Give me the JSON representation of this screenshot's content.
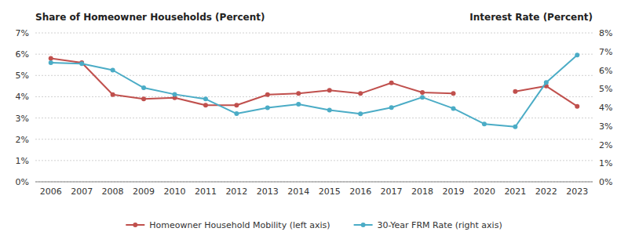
{
  "chart_data": {
    "type": "line",
    "y_label": "Share of Homeowner Households (Percent)",
    "y2_label": "Interest Rate (Percent)",
    "x": [
      2006,
      2007,
      2008,
      2009,
      2010,
      2011,
      2012,
      2013,
      2014,
      2015,
      2016,
      2017,
      2018,
      2019,
      2020,
      2021,
      2022,
      2023
    ],
    "xlim": [
      2005.5,
      2023.5
    ],
    "xticks": [
      2006,
      2007,
      2008,
      2009,
      2010,
      2011,
      2012,
      2013,
      2014,
      2015,
      2016,
      2017,
      2018,
      2019,
      2020,
      2021,
      2022,
      2023
    ],
    "ylim": [
      0,
      7
    ],
    "yticks": [
      {
        "value": 0,
        "label": "0%"
      },
      {
        "value": 1,
        "label": "1%"
      },
      {
        "value": 2,
        "label": "2%"
      },
      {
        "value": 3,
        "label": "3%"
      },
      {
        "value": 4,
        "label": "4%"
      },
      {
        "value": 5,
        "label": "5%"
      },
      {
        "value": 6,
        "label": "6%"
      },
      {
        "value": 7,
        "label": "7%"
      }
    ],
    "y2lim": [
      0,
      8
    ],
    "y2ticks": [
      {
        "value": 0,
        "label": "0%"
      },
      {
        "value": 1,
        "label": "1%"
      },
      {
        "value": 2,
        "label": "2%"
      },
      {
        "value": 3,
        "label": "3%"
      },
      {
        "value": 4,
        "label": "4%"
      },
      {
        "value": 5,
        "label": "5%"
      },
      {
        "value": 6,
        "label": "6%"
      },
      {
        "value": 7,
        "label": "7%"
      },
      {
        "value": 8,
        "label": "8%"
      }
    ],
    "grid": true,
    "legend": "bottom",
    "marker": "circle",
    "series": [
      {
        "name": "Homeowner Household Mobility (left axis)",
        "color": "#c0504d",
        "axis": "y",
        "values": [
          5.8,
          5.6,
          4.1,
          3.9,
          3.95,
          3.6,
          3.6,
          4.1,
          4.15,
          4.3,
          4.15,
          4.65,
          4.2,
          4.15,
          null,
          4.25,
          4.5,
          3.55
        ]
      },
      {
        "name": "30-Year FRM Rate (right axis)",
        "color": "#4bacc6",
        "axis": "y2",
        "values": [
          6.4,
          6.35,
          6.0,
          5.05,
          4.7,
          4.45,
          3.66,
          3.98,
          4.17,
          3.85,
          3.65,
          3.99,
          4.54,
          3.94,
          3.11,
          2.96,
          5.34,
          6.81
        ]
      }
    ]
  }
}
